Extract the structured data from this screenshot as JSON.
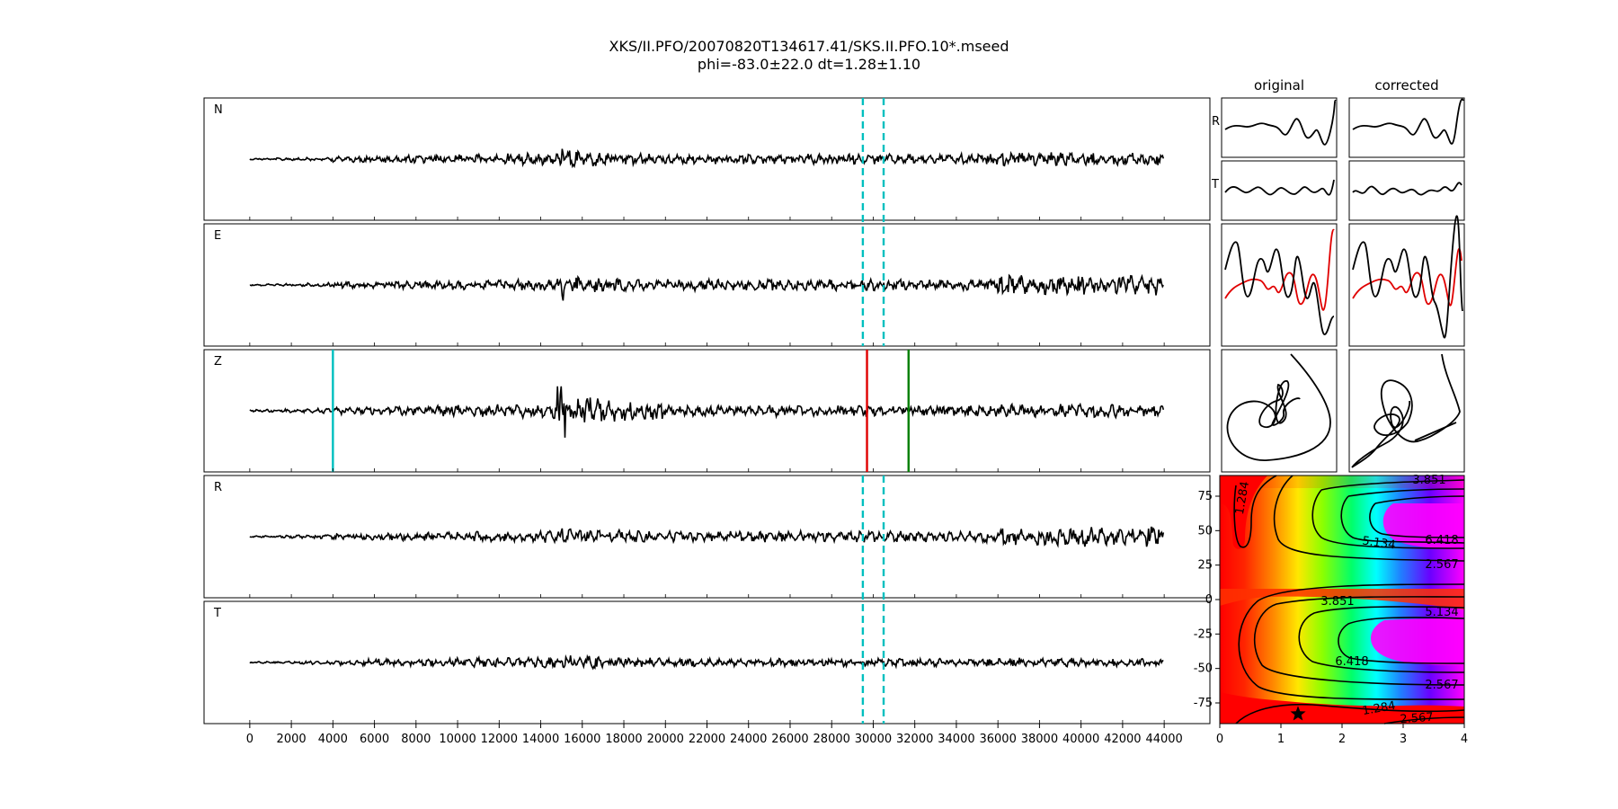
{
  "title_line1": "XKS/II.PFO/20070820T134617.41/SKS.II.PFO.10*.mseed",
  "title_line2": "phi=-83.0±22.0 dt=1.28±1.10",
  "chart_data": [
    {
      "type": "line",
      "panels": [
        "N",
        "E",
        "Z",
        "R",
        "T"
      ],
      "xlim": [
        -2200,
        46200
      ],
      "x_ticks": [
        0,
        2000,
        4000,
        6000,
        8000,
        10000,
        12000,
        14000,
        16000,
        18000,
        20000,
        22000,
        24000,
        26000,
        28000,
        30000,
        32000,
        34000,
        36000,
        38000,
        40000,
        42000,
        44000
      ],
      "window_lines": [
        29500,
        30500
      ],
      "z_markers": [
        {
          "x": 4000,
          "color": "#00bfbf"
        },
        {
          "x": 29700,
          "color": "#e00000"
        },
        {
          "x": 31700,
          "color": "#007f00"
        }
      ],
      "trace_color": "#000000"
    },
    {
      "type": "line",
      "column_titles": [
        "original",
        "corrected"
      ],
      "row_labels": [
        "R",
        "T"
      ]
    },
    {
      "type": "heatmap",
      "xlim": [
        0,
        4
      ],
      "ylim": [
        -90,
        90
      ],
      "x_ticks": [
        0,
        1,
        2,
        3,
        4
      ],
      "y_ticks": [
        75,
        50,
        25,
        0,
        -25,
        -50,
        -75
      ],
      "contour_labels": [
        "3.851",
        "1.284",
        "5.134",
        "6.418",
        "2.567",
        "3.851",
        "5.134",
        "6.418",
        "2.567",
        "1.284",
        "2.567"
      ],
      "best_fit": {
        "dt": 1.28,
        "phi": -83.0
      }
    }
  ]
}
